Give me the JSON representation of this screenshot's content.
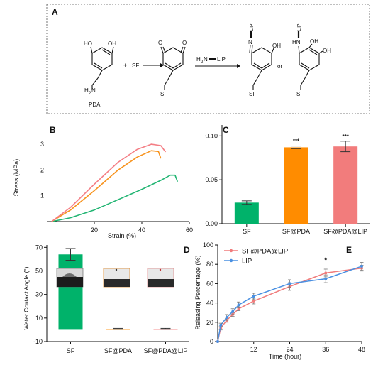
{
  "panelA": {
    "label": "A",
    "pda": {
      "oh1": "HO",
      "oh2": "OH",
      "amine": "H",
      "amine_n": "N",
      "amine_sub": "2",
      "name": "PDA"
    },
    "plus": "+",
    "sf": "SF",
    "quinone": {
      "o1": "O",
      "o2": "O",
      "sf": "SF"
    },
    "reagent": {
      "h2n": "H",
      "n": "N",
      "sub": "2",
      "lip": "LIP"
    },
    "product1": {
      "n": "N",
      "lip": "LIP",
      "oh": "OH",
      "sf": "SF"
    },
    "or": "or",
    "product2": {
      "hn": "HN",
      "lip": "LIP",
      "oh1": "OH",
      "oh2": "OH",
      "sf": "SF"
    }
  },
  "chart_data": [
    {
      "panel": "B",
      "type": "line",
      "label": "B",
      "ylabel": "Stress  (MPa)",
      "xlabel": "Strain (%)",
      "xlim": [
        0,
        60
      ],
      "ylim": [
        0,
        3.5
      ],
      "xticks": [
        20,
        40,
        60
      ],
      "yticks": [
        1,
        2,
        3
      ],
      "colors": [
        "#22b573",
        "#f7931e",
        "#f47e85"
      ],
      "series": [
        {
          "x": [
            2,
            10,
            20,
            30,
            40,
            48,
            52,
            54,
            55
          ],
          "values": [
            0,
            0.15,
            0.45,
            0.85,
            1.25,
            1.6,
            1.8,
            1.8,
            1.55
          ]
        },
        {
          "x": [
            2,
            10,
            20,
            30,
            38,
            44,
            47,
            48
          ],
          "values": [
            0,
            0.45,
            1.2,
            2.0,
            2.5,
            2.75,
            2.72,
            2.45
          ]
        },
        {
          "x": [
            2,
            10,
            20,
            30,
            38,
            44,
            48,
            50
          ],
          "values": [
            0,
            0.55,
            1.45,
            2.3,
            2.8,
            3.0,
            2.95,
            2.7
          ]
        }
      ]
    },
    {
      "panel": "C",
      "type": "bar",
      "label": "C",
      "categories": [
        "SF",
        "SF@PDA",
        "SF@PDA@LIP"
      ],
      "values": [
        0.024,
        0.087,
        0.088
      ],
      "errors": [
        0.002,
        0.0015,
        0.006
      ],
      "colors": [
        "#00b26a",
        "#ff8c00",
        "#f27c7c"
      ],
      "significance": [
        "",
        "***",
        "***"
      ],
      "ylim": [
        0,
        0.11
      ],
      "yticks": [
        "0.00",
        "0.05",
        "0.10"
      ]
    },
    {
      "panel": "D",
      "type": "bar",
      "label": "D",
      "ylabel": "Water Contact Angle  (°)",
      "categories": [
        "SF",
        "SF@PDA",
        "SF@PDA@LIP"
      ],
      "values": [
        64,
        0.8,
        0.8
      ],
      "errors": [
        5,
        0.4,
        0.4
      ],
      "colors": [
        "#00b26a",
        "#ff8c00",
        "#f27c7c"
      ],
      "ylim": [
        -10,
        72
      ],
      "yticks": [
        "-10",
        "10",
        "30",
        "50",
        "70"
      ]
    },
    {
      "panel": "E",
      "type": "line",
      "label": "E",
      "ylabel": "Releasing  Percentage (%)",
      "xlabel": "Time (hour)",
      "xlim": [
        0,
        48
      ],
      "ylim": [
        0,
        100
      ],
      "xticks": [
        "12",
        "24",
        "36",
        "48"
      ],
      "yticks": [
        "0",
        "20",
        "40",
        "60",
        "80",
        "100"
      ],
      "significance": {
        "x": 36,
        "label": "*"
      },
      "series": [
        {
          "name": "SF@PDA@LIP",
          "color": "#f07c7c",
          "x": [
            0,
            1,
            3,
            5,
            7,
            12,
            24,
            36,
            48
          ],
          "values": [
            0,
            14,
            22,
            28,
            34,
            42,
            57,
            71,
            76
          ],
          "errors": [
            0,
            2,
            2,
            2,
            2,
            3,
            4,
            4,
            3
          ]
        },
        {
          "name": "LIP",
          "color": "#4a90e2",
          "x": [
            0,
            1,
            3,
            5,
            7,
            12,
            24,
            36,
            48
          ],
          "values": [
            0,
            17,
            25,
            31,
            38,
            47,
            60,
            65,
            78
          ],
          "errors": [
            0,
            2,
            3,
            3,
            3,
            3,
            4,
            4,
            4
          ]
        }
      ]
    }
  ]
}
